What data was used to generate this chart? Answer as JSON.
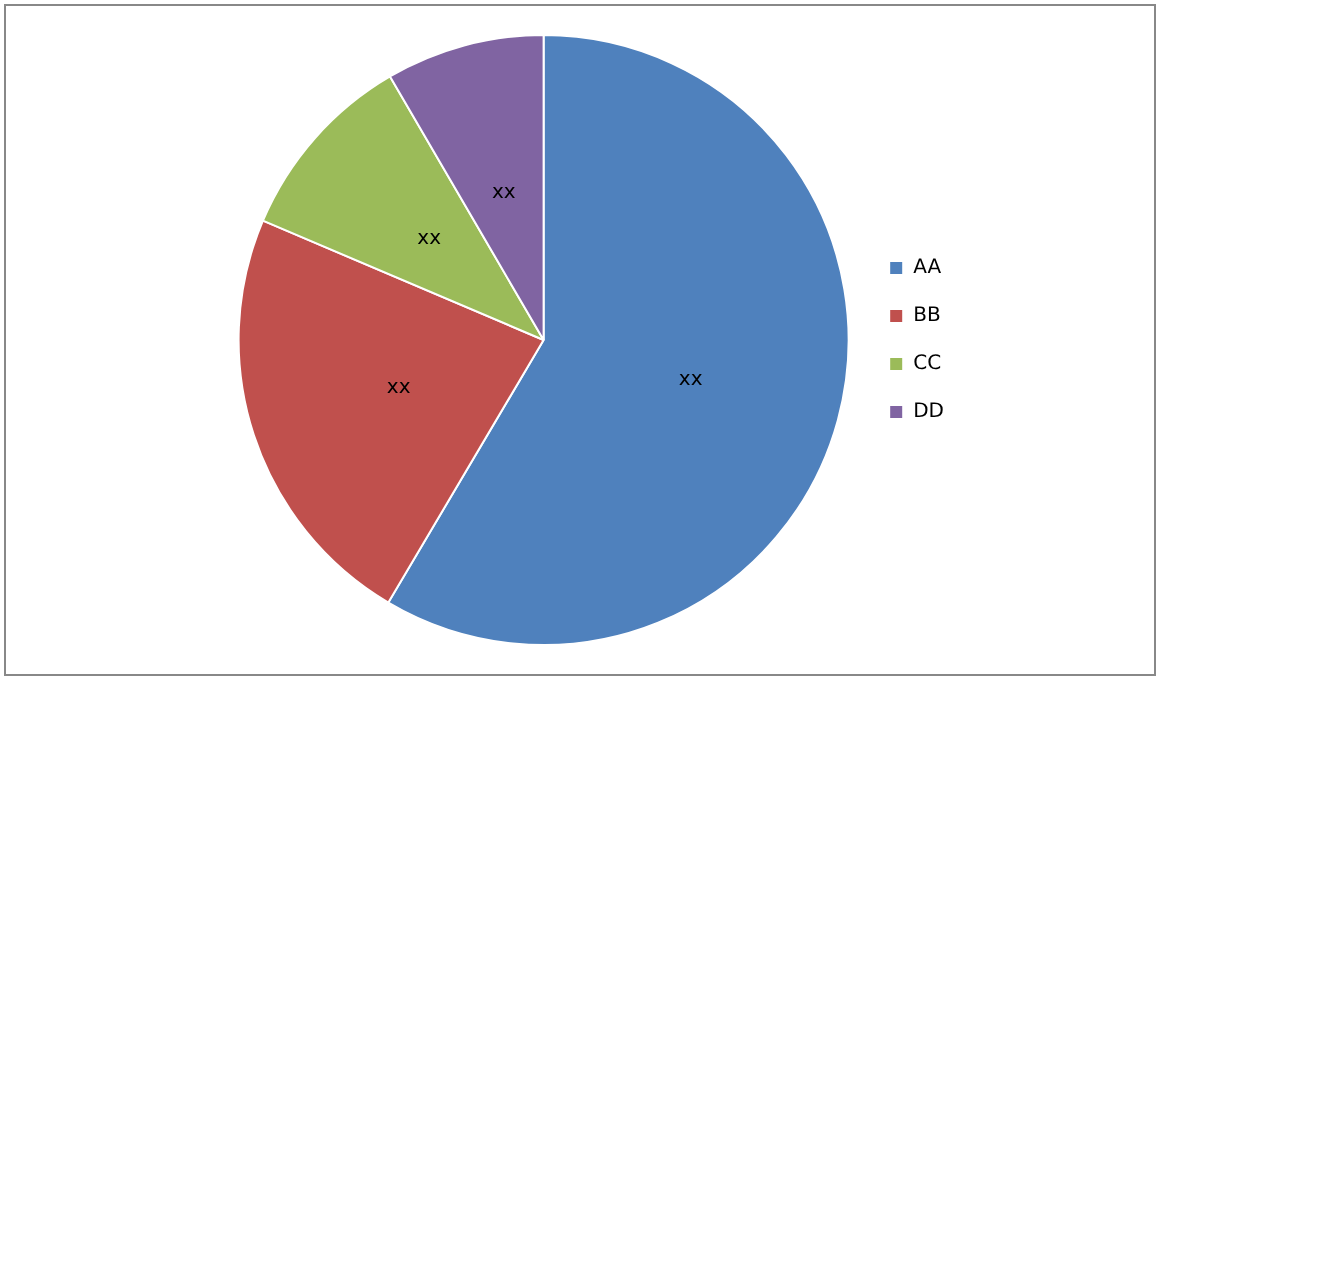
{
  "chart_data": {
    "type": "pie",
    "categories": [
      "AA",
      "BB",
      "CC",
      "DD"
    ],
    "values": [
      58.5,
      22.9,
      10.2,
      8.4
    ],
    "colors": [
      "#4f81bd",
      "#c0504d",
      "#9bbb59",
      "#8064a2"
    ],
    "value_labels": [
      "xx",
      "xx",
      "xx",
      "xx"
    ],
    "legend": "right"
  }
}
